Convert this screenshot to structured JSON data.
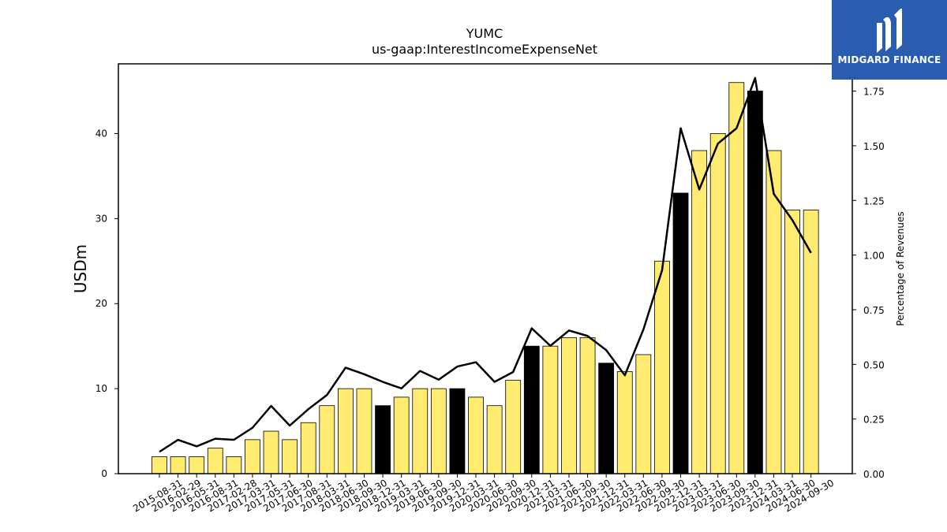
{
  "chart_data": {
    "type": "bar",
    "title": "YUMC",
    "subtitle": "us-gaap:InterestIncomeExpenseNet",
    "ylabel": "USDm",
    "y2label": "Percentage of Revenues",
    "ylim": [
      0,
      48.2
    ],
    "y2lim": [
      0,
      1.8748
    ],
    "yticks": [
      0,
      10,
      20,
      30,
      40
    ],
    "y2ticks": [
      0.0,
      0.25,
      0.5,
      0.75,
      1.0,
      1.25,
      1.5,
      1.75
    ],
    "categories": [
      "2015-08-31",
      "2016-02-29",
      "2016-05-31",
      "2016-08-31",
      "2017-02-28",
      "2017-03-31",
      "2017-05-31",
      "2017-06-30",
      "2017-08-31",
      "2018-03-31",
      "2018-06-30",
      "2018-09-30",
      "2018-12-31",
      "2019-03-31",
      "2019-06-30",
      "2019-09-30",
      "2019-12-31",
      "2020-03-31",
      "2020-06-30",
      "2020-09-30",
      "2020-12-31",
      "2021-03-31",
      "2021-06-30",
      "2021-09-30",
      "2021-12-31",
      "2022-03-31",
      "2022-06-30",
      "2022-09-30",
      "2022-12-31",
      "2023-03-31",
      "2023-06-30",
      "2023-09-30",
      "2023-12-31",
      "2024-03-31",
      "2024-06-30",
      "2024-09-30"
    ],
    "series": [
      {
        "values": [
          2,
          2,
          2,
          3,
          2,
          4,
          5,
          4,
          6,
          8,
          10,
          10,
          8,
          9,
          10,
          10,
          10,
          9,
          8,
          11,
          15,
          15,
          16,
          16,
          13,
          12,
          14,
          25,
          33,
          38,
          40,
          46,
          45,
          38,
          31,
          31
        ],
        "highlight": [
          false,
          false,
          false,
          false,
          false,
          false,
          false,
          false,
          false,
          false,
          false,
          false,
          true,
          false,
          false,
          false,
          true,
          false,
          false,
          false,
          true,
          false,
          false,
          false,
          true,
          false,
          false,
          false,
          true,
          false,
          false,
          false,
          true,
          false,
          false,
          false
        ],
        "color": "#ffeb70",
        "highlight_color": "#000000",
        "axis": "left",
        "mark": "bar"
      },
      {
        "values": [
          0.1,
          0.155,
          0.125,
          0.16,
          0.155,
          0.21,
          0.31,
          0.22,
          0.295,
          0.36,
          0.485,
          0.455,
          0.42,
          0.39,
          0.47,
          0.43,
          0.49,
          0.51,
          0.42,
          0.465,
          0.665,
          0.585,
          0.655,
          0.63,
          0.565,
          0.45,
          0.66,
          0.93,
          1.58,
          1.3,
          1.51,
          1.58,
          1.81,
          1.28,
          1.16,
          1.01
        ],
        "color": "#000000",
        "axis": "right",
        "mark": "line"
      }
    ],
    "grid": false
  },
  "logo": {
    "text": "MIDGARD FINANCE",
    "icon": "midgard-logo-icon",
    "background": "#2a5db0"
  }
}
